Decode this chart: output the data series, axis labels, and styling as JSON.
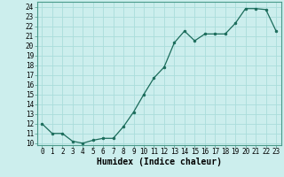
{
  "x": [
    0,
    1,
    2,
    3,
    4,
    5,
    6,
    7,
    8,
    9,
    10,
    11,
    12,
    13,
    14,
    15,
    16,
    17,
    18,
    19,
    20,
    21,
    22,
    23
  ],
  "y": [
    12.0,
    11.0,
    11.0,
    10.2,
    10.0,
    10.3,
    10.5,
    10.5,
    11.7,
    13.2,
    15.0,
    16.7,
    17.8,
    20.3,
    21.5,
    20.5,
    21.2,
    21.2,
    21.2,
    22.3,
    23.8,
    23.8,
    23.7,
    21.5
  ],
  "xlabel": "Humidex (Indice chaleur)",
  "xlim": [
    -0.5,
    23.5
  ],
  "ylim": [
    9.8,
    24.5
  ],
  "yticks": [
    10,
    11,
    12,
    13,
    14,
    15,
    16,
    17,
    18,
    19,
    20,
    21,
    22,
    23,
    24
  ],
  "xticks": [
    0,
    1,
    2,
    3,
    4,
    5,
    6,
    7,
    8,
    9,
    10,
    11,
    12,
    13,
    14,
    15,
    16,
    17,
    18,
    19,
    20,
    21,
    22,
    23
  ],
  "line_color": "#1a6b5a",
  "marker_color": "#1a6b5a",
  "bg_color": "#cceeed",
  "grid_color": "#aadddb",
  "xlabel_fontsize": 7,
  "tick_fontsize": 5.5
}
